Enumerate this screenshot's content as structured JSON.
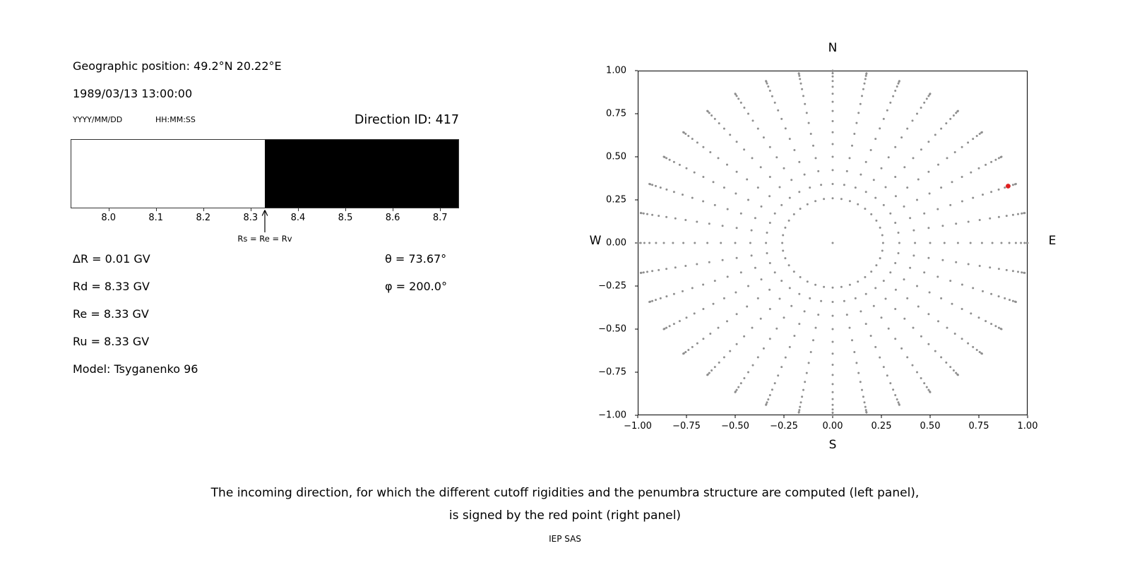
{
  "left_panel": {
    "geographic_position": "Geographic position: 49.2°N 20.22°E",
    "datetime": "1989/03/13 13:00:00",
    "date_format_label": "YYYY/MM/DD",
    "time_format_label": "HH:MM:SS",
    "direction_id_label": "Direction ID: 417",
    "arrow_label": "Rs = Re = Rv",
    "values": [
      "ΔR = 0.01 GV",
      "Rd = 8.33 GV",
      "Re = 8.33 GV",
      "Ru = 8.33 GV",
      "Model: Tsyganenko 96"
    ],
    "theta_label": "θ = 73.67°",
    "phi_label": "φ = 200.0°"
  },
  "caption": {
    "line1": "The incoming direction, for which the different cutoff rigidities and the penumbra structure are computed (left panel),",
    "line2": "is signed by the red point (right panel)",
    "credit": "IEP SAS"
  },
  "chart_data": [
    {
      "type": "area",
      "name": "penumbra-structure-band",
      "xmin": 7.92,
      "xmax": 8.74,
      "tick_labels": [
        "8.0",
        "8.1",
        "8.2",
        "8.3",
        "8.4",
        "8.5",
        "8.6",
        "8.7"
      ],
      "transition": 8.33,
      "left_band_color": "#ffffff",
      "right_band_color": "#000000",
      "arrow_value": 8.33,
      "arrow_label": "Rs = Re = Rv",
      "border_color": "#333333"
    },
    {
      "type": "scatter",
      "name": "incoming-direction-sky-map",
      "xlim": [
        -1,
        1
      ],
      "ylim": [
        -1,
        1
      ],
      "xtick_labels": [
        "−1.00",
        "−0.75",
        "−0.50",
        "−0.25",
        "0.00",
        "0.25",
        "0.50",
        "0.75",
        "1.00"
      ],
      "ytick_labels": [
        "−1.00",
        "−0.75",
        "−0.50",
        "−0.25",
        "0.00",
        "0.25",
        "0.50",
        "0.75",
        "1.00"
      ],
      "compass_labels": {
        "top": "N",
        "bottom": "S",
        "left": "W",
        "right": "E"
      },
      "grid": false,
      "legend": "none",
      "dot_color": "#8f8f8f",
      "spokes": {
        "azimuth_start_deg": 0,
        "azimuth_step_deg": 10,
        "azimuth_count": 36,
        "zenith_min_deg": 15,
        "zenith_max_deg": 90,
        "zenith_step_deg": 5,
        "radius_mapping": "sin(zenith)"
      },
      "center_dot": true,
      "red_point": {
        "x": 0.9,
        "y": 0.33,
        "color": "#e02020"
      }
    }
  ]
}
